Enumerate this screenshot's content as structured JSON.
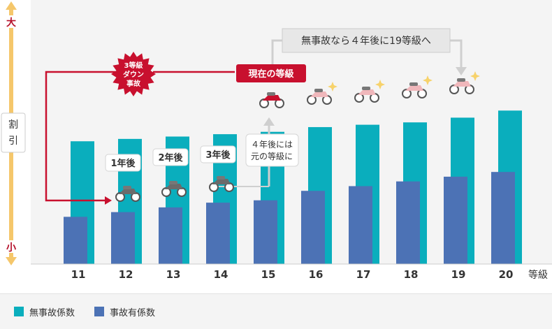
{
  "chart_data": {
    "type": "bar",
    "categories": [
      "11",
      "12",
      "13",
      "14",
      "15",
      "16",
      "17",
      "18",
      "19",
      "20"
    ],
    "x_unit": "等級",
    "series": [
      {
        "name": "無事故係数",
        "values": [
          52,
          53,
          54,
          55,
          56,
          58,
          59,
          60,
          62,
          65
        ]
      },
      {
        "name": "事故有係数",
        "values": [
          20,
          22,
          24,
          26,
          27,
          31,
          33,
          35,
          37,
          39
        ]
      }
    ],
    "ylim": [
      0,
      100
    ],
    "y_axis": {
      "top": "大",
      "label": "割引",
      "bottom": "小"
    },
    "colors": {
      "no_accident": "#0aaebd",
      "accident": "#4c72b5",
      "accent": "#c8102e",
      "gray": "#cfcfcf"
    },
    "annotations": {
      "current_badge": "現在の等級",
      "downgrade_badge": [
        "3等級",
        "ダウン",
        "事故"
      ],
      "goal_box": "無事故なら４年後に19等級へ",
      "restore_box": [
        "４年後には",
        "元の等級に"
      ],
      "years": [
        "1年後",
        "2年後",
        "3年後"
      ]
    }
  },
  "legend": [
    {
      "label": "無事故係数",
      "color": "#0aaebd"
    },
    {
      "label": "事故有係数",
      "color": "#4c72b5"
    }
  ]
}
